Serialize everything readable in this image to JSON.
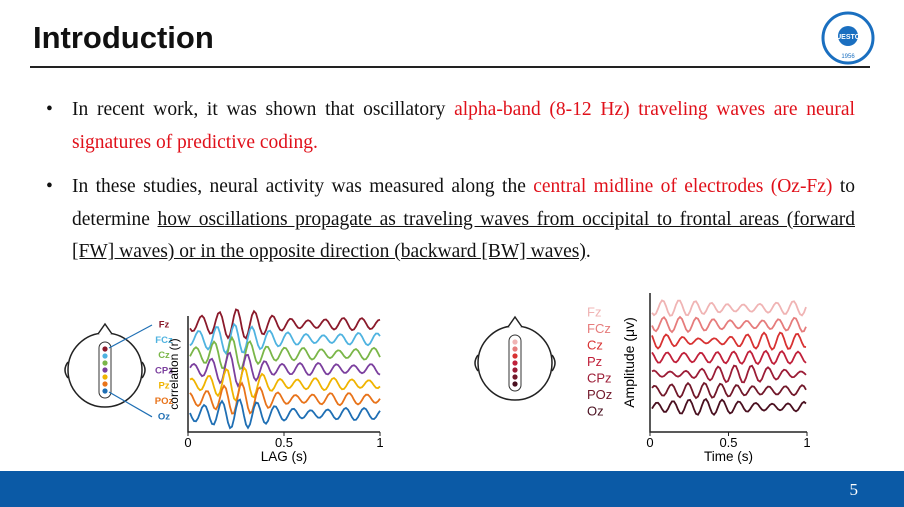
{
  "header": {
    "title": "Introduction",
    "logo": {
      "name": "UESTC",
      "year": "1956"
    }
  },
  "bullets": [
    {
      "segments": [
        {
          "text": "In recent work, it was shown that oscillatory ",
          "style": "plain"
        },
        {
          "text": "alpha-band (8-12 Hz) traveling waves are neural signatures of predictive coding.",
          "style": "red"
        }
      ]
    },
    {
      "segments": [
        {
          "text": "In these studies, neural activity was measured along the ",
          "style": "plain"
        },
        {
          "text": "central midline of electrodes (Oz-Fz)",
          "style": "red"
        },
        {
          "text": " to determine ",
          "style": "plain"
        },
        {
          "text": "how oscillations propagate as traveling waves from occipital to frontal areas (forward [FW] waves) or in the opposite direction (backward [BW] waves)",
          "style": "underline"
        },
        {
          "text": ".",
          "style": "plain"
        }
      ]
    }
  ],
  "figures": [
    {
      "y_label": "correlation (r)",
      "x_label": "LAG (s)",
      "x_ticks": [
        "0",
        "0.5",
        "1"
      ],
      "electrodes": [
        {
          "name": "Fz",
          "color": "#8b1a2b"
        },
        {
          "name": "FCz",
          "color": "#4fb3e0"
        },
        {
          "name": "Cz",
          "color": "#7ab648"
        },
        {
          "name": "CPz",
          "color": "#7b3f9e"
        },
        {
          "name": "Pz",
          "color": "#f0b400"
        },
        {
          "name": "POz",
          "color": "#e8731a"
        },
        {
          "name": "Oz",
          "color": "#1f6fb4"
        }
      ]
    },
    {
      "y_label": "Amplitude (μv)",
      "x_label": "Time (s)",
      "x_ticks": [
        "0",
        "0.5",
        "1"
      ],
      "electrodes": [
        {
          "name": "Fz",
          "color": "#f0b4b4"
        },
        {
          "name": "FCz",
          "color": "#e67c7c"
        },
        {
          "name": "Cz",
          "color": "#d83232"
        },
        {
          "name": "Pz",
          "color": "#c0203a"
        },
        {
          "name": "CPz",
          "color": "#9c1c36"
        },
        {
          "name": "POz",
          "color": "#72182a"
        },
        {
          "name": "Oz",
          "color": "#4a1020"
        }
      ]
    }
  ],
  "footer": {
    "page_number": "5"
  }
}
